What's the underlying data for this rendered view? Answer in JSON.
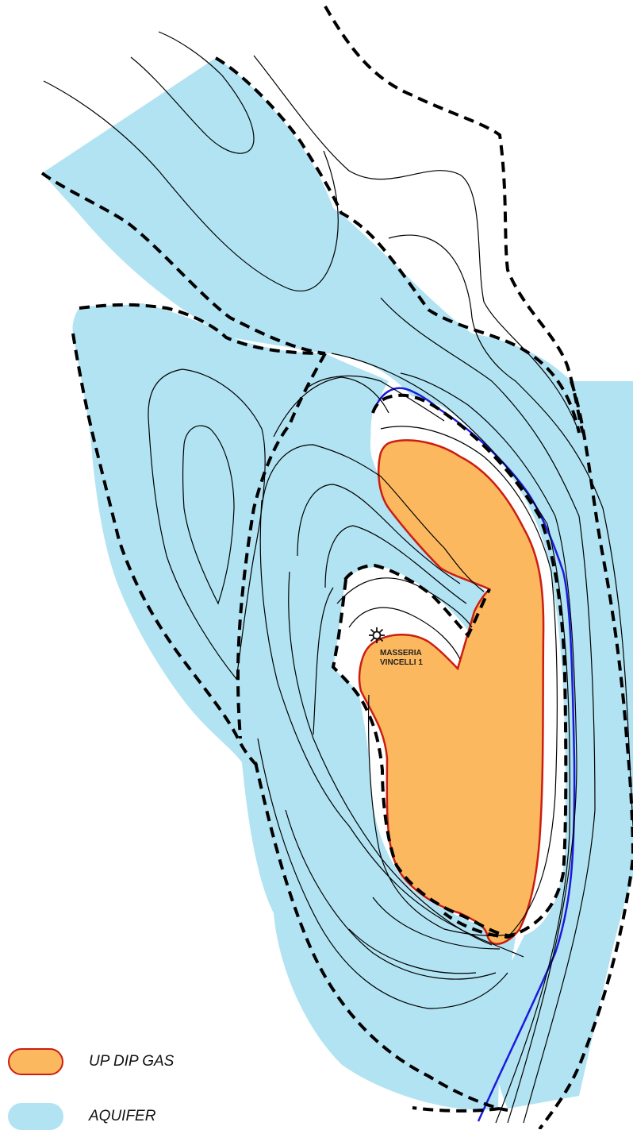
{
  "well": {
    "name_line1": "MASSERIA",
    "name_line2": "VINCELLI 1",
    "icon": "gas-well-icon"
  },
  "legend": [
    {
      "label": "UP DIP GAS",
      "fill": "#fcb85e",
      "stroke": "#cc1d10"
    },
    {
      "label": "AQUIFER",
      "fill": "#b1e3f2",
      "stroke": "none"
    }
  ],
  "colors": {
    "aquifer": "#b1e3f2",
    "gas": "#fcb85e",
    "gas_outline": "#cc1d10",
    "gas_water_contact": "#1a1adf",
    "contour": "#000000",
    "background": "#ffffff"
  }
}
